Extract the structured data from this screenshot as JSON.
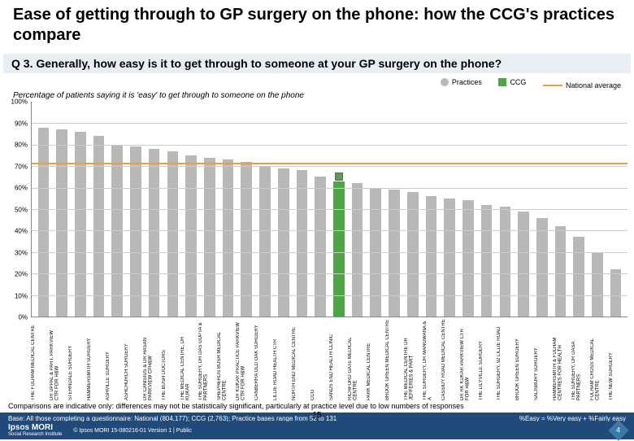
{
  "header": {
    "title": "Ease of getting through to GP surgery on the phone: how the CCG's practices compare"
  },
  "question": "Q 3. Generally, how easy is it to get through to someone at your GP surgery on the phone?",
  "legend": {
    "practices": "Practices",
    "ccg": "CCG",
    "national": "National average"
  },
  "subtitle": "Percentage of patients saying it is 'easy' to get through to someone on the phone",
  "chart": {
    "type": "bar",
    "ylim": [
      0,
      100
    ],
    "ytick_step": 10,
    "ytick_suffix": "%",
    "plot_bg": "#ffffff",
    "grid_color": "#cccccc",
    "bar_color": "#b8b8b8",
    "ccg_color": "#4ea547",
    "nat_color": "#e6a13a",
    "national_value": 71,
    "ccg_value": 65,
    "ccg_index": 16,
    "practices": [
      {
        "label": "THE FULHAM MEDICAL CENTRE",
        "value": 88
      },
      {
        "label": "DR UPPAL & PART. PARKVIEW CTR FOR H&W",
        "value": 87
      },
      {
        "label": "STERNDALE SURGERY",
        "value": 86
      },
      {
        "label": "HAMMERSMITH SURGERY",
        "value": 84
      },
      {
        "label": "ASHVILLE SURGERY",
        "value": 80
      },
      {
        "label": "ASHCHURCH SURGERY",
        "value": 79
      },
      {
        "label": "DR CANISIUS & DR HASAN PARKVIEW CFH&W",
        "value": 78
      },
      {
        "label": "THE BUSH DOCTORS",
        "value": 77
      },
      {
        "label": "THE MEDICAL CENTRE, DR KUKAR",
        "value": 75
      },
      {
        "label": "THE SURGERY, DR DAS GUPTA & PARTNERS",
        "value": 74
      },
      {
        "label": "SHEPHERDS BUSH MEDICAL CENTRE",
        "value": 73
      },
      {
        "label": "DR KUKAR PRACTICE PARKVIEW CTR FOR H&W",
        "value": 72
      },
      {
        "label": "CANBERRA OLD OAK SURGERY",
        "value": 70
      },
      {
        "label": "LILLIE ROAD HEALTH CTR",
        "value": 69
      },
      {
        "label": "NORTH END MEDICAL CENTRE",
        "value": 68
      },
      {
        "label": "CCG",
        "value": 65
      },
      {
        "label": "SANDS END HEALTH CLINIC",
        "value": 63
      },
      {
        "label": "RICHFORD GATE MEDICAL CENTRE",
        "value": 62
      },
      {
        "label": "PARK MEDICAL CENTRE",
        "value": 60
      },
      {
        "label": "BROOK GREEN MEDICAL CENTRE",
        "value": 59
      },
      {
        "label": "THE MEDICAL CENTRE DR JEFFERIES & PART",
        "value": 58
      },
      {
        "label": "THE SURGERY, DR MANGWANA & A",
        "value": 56
      },
      {
        "label": "CASSIDY ROAD MEDICAL CENTRE",
        "value": 55
      },
      {
        "label": "DR RK KUKAR PARKVIEW CTR FOR H&W",
        "value": 54
      },
      {
        "label": "THE LILYVILLE SURGERY",
        "value": 52
      },
      {
        "label": "THE SURGERY, 92 LILLIE ROAD",
        "value": 51
      },
      {
        "label": "BROOK GREEN SURGERY",
        "value": 49
      },
      {
        "label": "SALISBURY SURGERY",
        "value": 46
      },
      {
        "label": "HAMMERSMITH & FULHAM CENTRES FOR HEALTH",
        "value": 42
      },
      {
        "label": "THE SURGERY, DR DASA PARTNERS",
        "value": 37
      },
      {
        "label": "FULHAM CROSS MEDICAL CENTRE",
        "value": 30
      },
      {
        "label": "THE NEW SURGERY",
        "value": 22
      }
    ]
  },
  "caveat": "Comparisons are indicative only: differences may not be statistically significant, particularly at practice level due to low numbers of responses",
  "base": {
    "left": "Base: All those completing a questionnaire: National (804,177); CCG (2,763); Practice bases range from 52 to 131",
    "right": "%Easy = %Very easy + %Fairly easy"
  },
  "pagenum": "15",
  "footer": {
    "brand": "Ipsos MORI",
    "subbrand": "Social Research Institute",
    "copy": "© Ipsos MORI    15-080216-01 Version 1 | Public",
    "badge": "4"
  }
}
